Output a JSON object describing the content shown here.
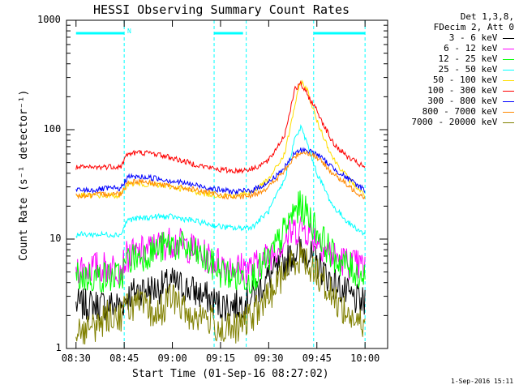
{
  "chart_data": {
    "type": "line",
    "title": "HESSI Observing Summary Count Rates",
    "xlabel": "Start Time (01-Sep-16 08:27:02)",
    "ylabel": "Count Rate (s⁻¹ detector⁻¹)",
    "x_ticks": [
      "08:30",
      "08:45",
      "09:00",
      "09:15",
      "09:30",
      "09:45",
      "10:00"
    ],
    "y_ticks": [
      "1",
      "10",
      "100",
      "1000"
    ],
    "y_scale": "log",
    "xlim_minutes": [
      0,
      100
    ],
    "ylim": [
      1,
      1000
    ],
    "legend_header": [
      "Det 1,3,8,",
      "FDecim 2, Att 0"
    ],
    "timestamp": "1-Sep-2016 15:11",
    "flag_marker": "N",
    "x": [
      "08:30",
      "08:35",
      "08:40",
      "08:44",
      "08:46",
      "08:50",
      "08:55",
      "09:00",
      "09:05",
      "09:10",
      "09:15",
      "09:20",
      "09:25",
      "09:30",
      "09:35",
      "09:38",
      "09:40",
      "09:42",
      "09:45",
      "09:50",
      "09:55",
      "10:00"
    ],
    "series": [
      {
        "name": "3 - 6 keV",
        "color": "#000000",
        "values": [
          2.5,
          2.5,
          2.5,
          2.5,
          3.0,
          3.5,
          3.5,
          4.0,
          3.5,
          3.0,
          2.5,
          2.5,
          3.0,
          4.5,
          6.0,
          7.5,
          8.0,
          7.5,
          6.0,
          4.0,
          3.0,
          2.5
        ]
      },
      {
        "name": "6 - 12 keV",
        "color": "#ff00ff",
        "values": [
          5.5,
          5.5,
          5.5,
          5.5,
          7.0,
          7.5,
          8.5,
          9.5,
          8.5,
          7.0,
          6.0,
          5.5,
          5.5,
          7.0,
          10,
          12,
          13,
          12,
          10,
          7,
          6,
          5.5
        ]
      },
      {
        "name": "12 - 25 keV",
        "color": "#00ff00",
        "values": [
          4.5,
          4.5,
          4.5,
          4.5,
          6.5,
          7.0,
          8.0,
          9.0,
          8.0,
          6.5,
          5.0,
          4.5,
          4.5,
          6.5,
          12,
          18,
          20,
          17,
          12,
          7,
          5.5,
          4.5
        ]
      },
      {
        "name": "25 - 50 keV",
        "color": "#00ffff",
        "values": [
          11,
          11,
          11,
          11,
          15,
          15.5,
          16,
          16,
          15,
          14,
          13,
          12.5,
          13,
          18,
          35,
          80,
          105,
          75,
          40,
          20,
          14,
          11
        ]
      },
      {
        "name": "50 - 100 keV",
        "color": "#ffdd00",
        "values": [
          25,
          25,
          25,
          25,
          32,
          32,
          31,
          30,
          28,
          26,
          25,
          25,
          27,
          35,
          60,
          160,
          280,
          230,
          120,
          55,
          35,
          25
        ]
      },
      {
        "name": "100 - 300 keV",
        "color": "#ff0000",
        "values": [
          45,
          45,
          46,
          46,
          60,
          62,
          60,
          55,
          50,
          46,
          43,
          42,
          44,
          52,
          90,
          230,
          260,
          210,
          150,
          75,
          55,
          45
        ]
      },
      {
        "name": "300 - 800 keV",
        "color": "#0000ff",
        "values": [
          28,
          28,
          29,
          29,
          37,
          37,
          36,
          34,
          32,
          30,
          28,
          27,
          28,
          33,
          45,
          60,
          65,
          65,
          60,
          45,
          35,
          28
        ]
      },
      {
        "name": "800 - 7000 keV",
        "color": "#ff8800",
        "values": [
          25,
          25,
          26,
          26,
          33,
          34,
          32,
          30,
          29,
          27,
          25,
          24,
          25,
          30,
          42,
          56,
          62,
          62,
          56,
          40,
          30,
          24
        ]
      },
      {
        "name": "7000 - 20000 keV",
        "color": "#808000",
        "values": [
          1.5,
          1.5,
          2.0,
          2.0,
          2.5,
          2.5,
          2.0,
          3.0,
          2.0,
          2.0,
          1.5,
          1.5,
          2.0,
          3.0,
          5.0,
          6.5,
          7.0,
          6.0,
          5.0,
          3.0,
          2.0,
          1.5
        ]
      }
    ],
    "vertical_markers": [
      "08:45",
      "09:13",
      "09:23",
      "09:44",
      "10:00"
    ],
    "intervals": [
      [
        "08:30",
        "08:45"
      ],
      [
        "09:13",
        "09:22"
      ],
      [
        "09:44",
        "10:00"
      ]
    ],
    "grid": false,
    "legend_position": "right"
  },
  "colors": {
    "marker": "#00ffff",
    "axis": "#000000",
    "background": "#ffffff"
  }
}
